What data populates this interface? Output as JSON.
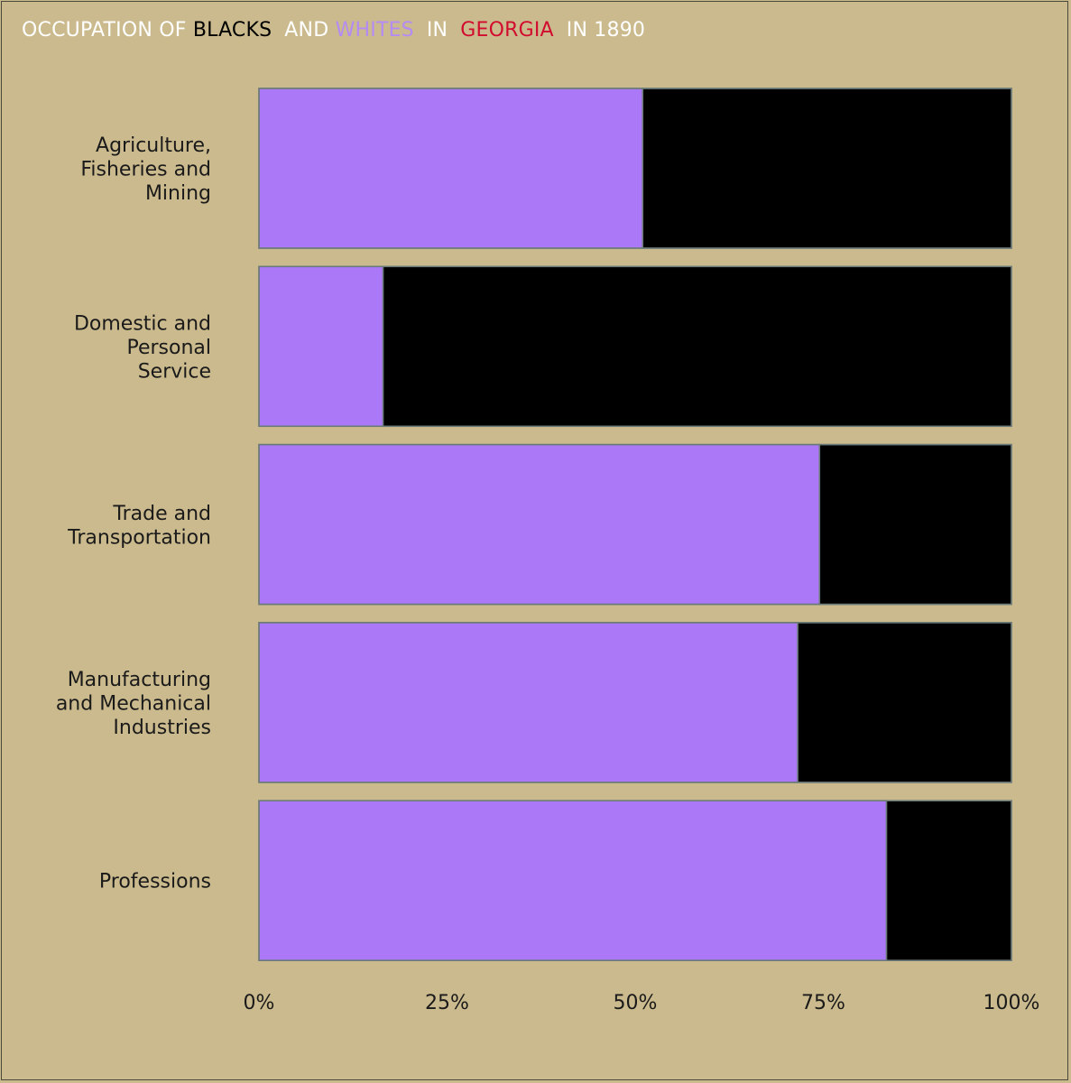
{
  "title": {
    "part1": "OCCUPATION OF",
    "blacks": "BLACKS",
    "and": "AND",
    "whites": "WHITES",
    "in1": "IN",
    "georgia": "GEORGIA",
    "in2": "IN 1890"
  },
  "colors": {
    "background": "#cbba8d",
    "whites": "#ab79f7",
    "blacks": "#000000",
    "title_default": "#ffffff",
    "title_blacks": "#000000",
    "title_whites": "#b48af5",
    "title_georgia": "#d10c2f",
    "bar_border": "#6a7a78"
  },
  "chart_data": {
    "type": "bar",
    "orientation": "horizontal",
    "stacked": true,
    "normalized": true,
    "categories": [
      [
        "Agriculture,",
        "Fisheries and",
        "Mining"
      ],
      [
        "Domestic and",
        "Personal",
        "Service"
      ],
      [
        "Trade and",
        "Transportation"
      ],
      [
        "Manufacturing",
        "and Mechanical",
        "Industries"
      ],
      [
        "Professions"
      ]
    ],
    "series": [
      {
        "name": "WHITES",
        "values": [
          0.51,
          0.165,
          0.745,
          0.716,
          0.834
        ]
      },
      {
        "name": "BLACKS",
        "values": [
          0.49,
          0.835,
          0.255,
          0.284,
          0.166
        ]
      }
    ],
    "xlim": [
      0,
      1
    ],
    "xticks": [
      {
        "value": 0,
        "label": "0%"
      },
      {
        "value": 0.25,
        "label": "25%"
      },
      {
        "value": 0.5,
        "label": "50%"
      },
      {
        "value": 0.75,
        "label": "75%"
      },
      {
        "value": 1,
        "label": "100%"
      }
    ],
    "grid": false,
    "legend": "title"
  }
}
